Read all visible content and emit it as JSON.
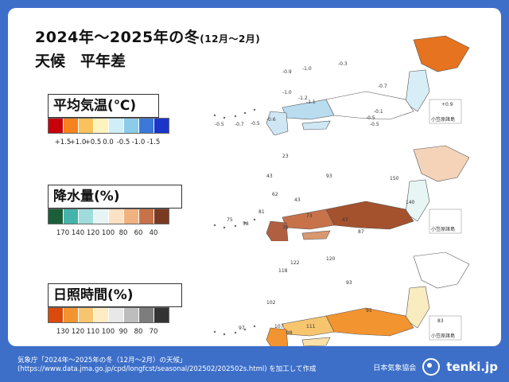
{
  "title": {
    "main": "2024年～2025年の冬",
    "period": "(12月～2月)"
  },
  "subtitle": "天候　平年差",
  "legends": {
    "temperature": {
      "title": "平均気温(℃)",
      "labels": [
        "+1.5",
        "+1.0",
        "+0.5",
        "0.0",
        "-0.5",
        "-1.0",
        "-1.5"
      ],
      "colors": [
        "#c8000a",
        "#f5821f",
        "#f9c25c",
        "#fdf3bf",
        "#cfeef6",
        "#8ccbe9",
        "#3b78d8",
        "#1b35c9"
      ]
    },
    "precipitation": {
      "title": "降水量(%)",
      "labels": [
        "170",
        "140",
        "120",
        "100",
        "80",
        "60",
        "40"
      ],
      "colors": [
        "#1b5f3a",
        "#45b3a9",
        "#9fdcdb",
        "#e6f5f4",
        "#fbe1c6",
        "#f0b27f",
        "#c8724a",
        "#7a3a22"
      ]
    },
    "sunshine": {
      "title": "日照時間(%)",
      "labels": [
        "130",
        "120",
        "110",
        "100",
        "90",
        "80",
        "70"
      ],
      "colors": [
        "#d94a0c",
        "#f29430",
        "#f8c56f",
        "#fdecc4",
        "#e8e8e8",
        "#bdbdbd",
        "#7d7d7d",
        "#333333"
      ]
    }
  },
  "maps": {
    "temperature": {
      "values": [
        "-1.0",
        "-0.3",
        "-0.7",
        "-0.9",
        "-1.2",
        "-1.1",
        "-1.0",
        "-0.5",
        "-0.5",
        "-0.7",
        "-0.6",
        "-0.5",
        "-0.1",
        "-0.5",
        "+0.9"
      ],
      "ogasawara": "小笠原諸島"
    },
    "precipitation": {
      "values": [
        "23",
        "93",
        "150",
        "43",
        "62",
        "47",
        "73",
        "75",
        "58",
        "79",
        "140",
        "81",
        "87",
        "43"
      ],
      "ogasawara": "小笠原諸島"
    },
    "sunshine": {
      "values": [
        "122",
        "120",
        "118",
        "93",
        "102",
        "107",
        "97",
        "111",
        "98",
        "95",
        "83"
      ],
      "ogasawara": "小笠原諸島"
    }
  },
  "footer": {
    "line1": "気象庁「2024年～2025年の冬（12月～2月）の天候」",
    "line2": "(https://www.data.jma.go.jp/cpd/longfcst/seasonal/202502/202502s.html) を加工して作成"
  },
  "brand": {
    "org": "日本気象協会",
    "logo": "tenki.jp"
  }
}
